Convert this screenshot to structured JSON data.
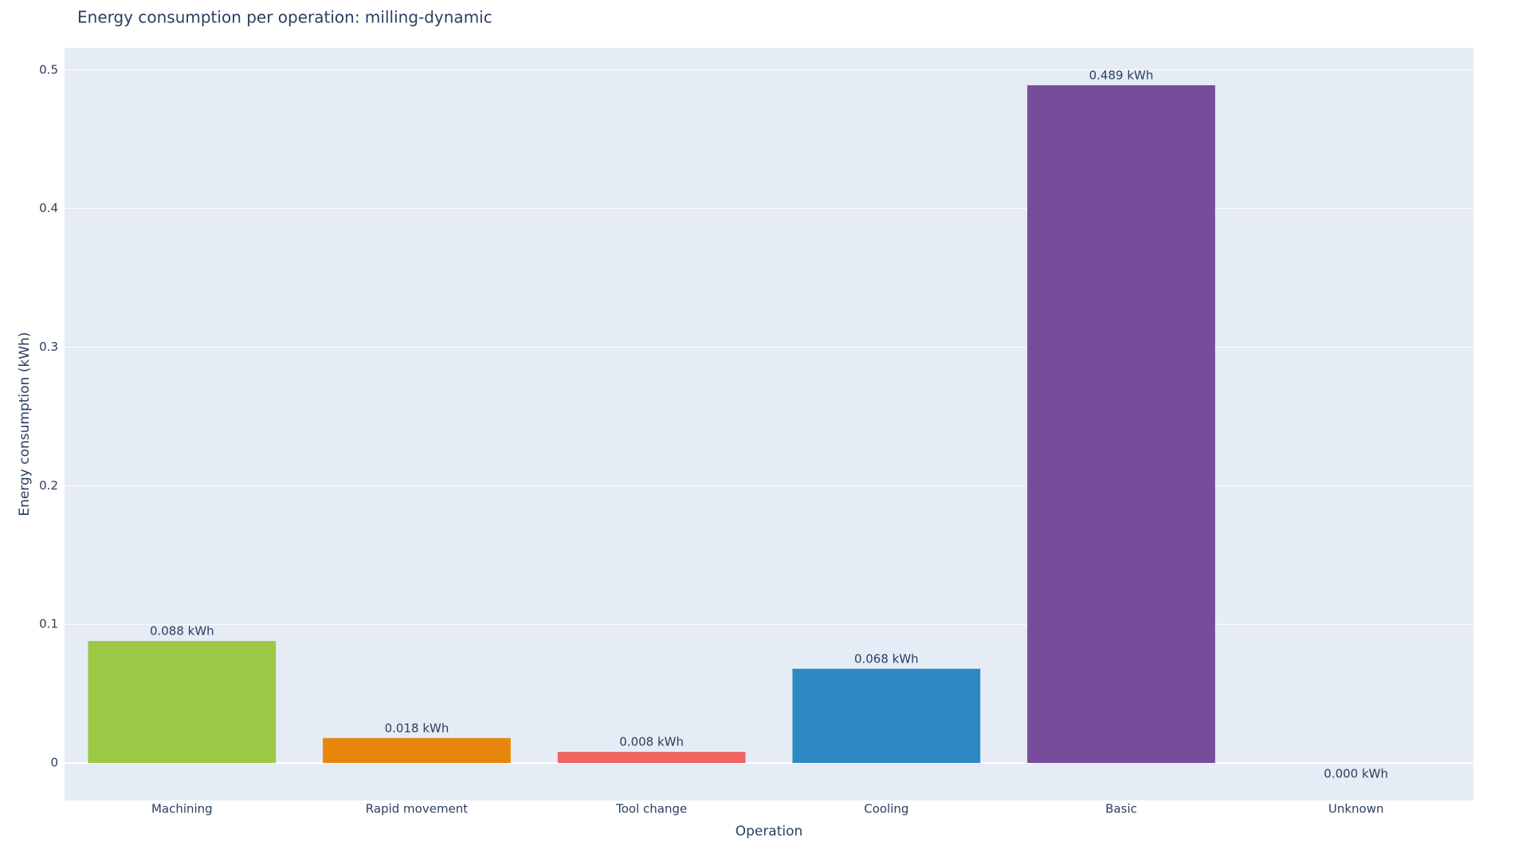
{
  "chart_data": {
    "type": "bar",
    "title": "Energy consumption per operation: milling-dynamic",
    "x_label": "Operation",
    "y_label": "Energy consumption (kWh)",
    "categories": [
      "Machining",
      "Rapid movement",
      "Tool change",
      "Cooling",
      "Basic",
      "Unknown"
    ],
    "values": [
      0.088,
      0.018,
      0.008,
      0.068,
      0.489,
      0
    ],
    "value_labels": [
      "0.088 kWh",
      "0.018 kWh",
      "0.008 kWh",
      "0.068 kWh",
      "0.489 kWh",
      "0.000 kWh"
    ],
    "colors": [
      "#9bc945",
      "#e6870b",
      "#ef6461",
      "#2e89c3",
      "#774c9c",
      "#9a9a9a"
    ],
    "ylim": [
      -0.027,
      0.516
    ],
    "yticks": [
      0,
      0.1,
      0.2,
      0.3,
      0.4,
      0.5
    ],
    "grid": true
  }
}
